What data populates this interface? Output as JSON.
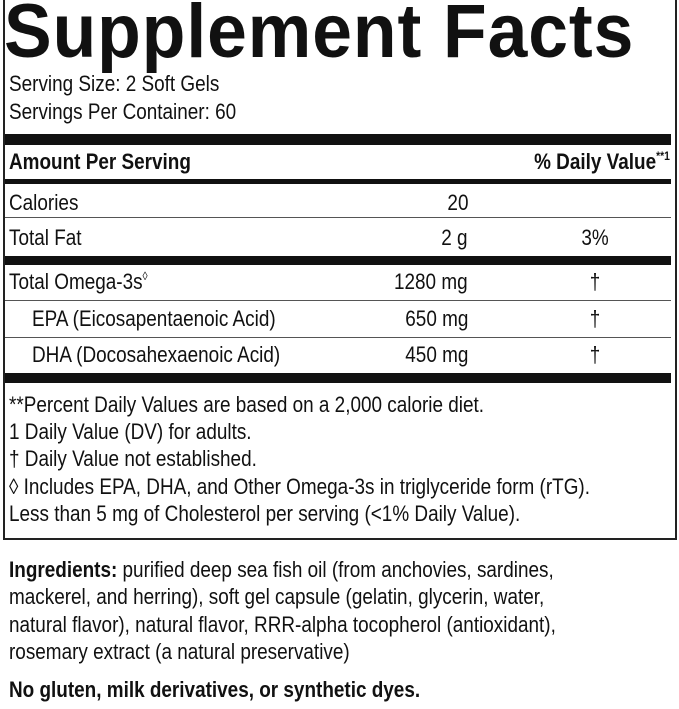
{
  "title": "Supplement Facts",
  "serving_size": "Serving Size: 2 Soft Gels",
  "servings_per_container": "Servings Per Container: 60",
  "header": {
    "amount": "Amount Per Serving",
    "dv": "% Daily Value",
    "dv_mark": "**1"
  },
  "rows": [
    {
      "name": "Calories",
      "mark": "",
      "amount": "20",
      "dv": ""
    },
    {
      "name": "Total Fat",
      "mark": "",
      "amount": "2 g",
      "dv": "3%"
    },
    {
      "name": "Total Omega-3s",
      "mark": "◊",
      "amount": "1280 mg",
      "dv": "†"
    },
    {
      "name": "EPA (Eicosapentaenoic Acid)",
      "mark": "",
      "amount": "650 mg",
      "dv": "†"
    },
    {
      "name": "DHA (Docosahexaenoic Acid)",
      "mark": "",
      "amount": "450 mg",
      "dv": "†"
    }
  ],
  "footnotes": [
    "**Percent Daily Values are based on a 2,000 calorie diet.",
    "1 Daily Value (DV) for adults.",
    "† Daily Value not established.",
    "◊ Includes EPA, DHA, and Other Omega-3s in triglyceride form (rTG).",
    "Less than 5 mg of Cholesterol per serving (<1% Daily Value)."
  ],
  "ingredients": {
    "label": "Ingredients:",
    "lines": [
      " purified deep sea fish oil (from anchovies, sardines,",
      "mackerel, and herring), soft gel capsule (gelatin, glycerin, water,",
      "natural flavor), natural flavor, RRR-alpha tocopherol (antioxidant),",
      "rosemary extract (a natural preservative)"
    ]
  },
  "free_from": "No gluten, milk derivatives, or synthetic dyes."
}
